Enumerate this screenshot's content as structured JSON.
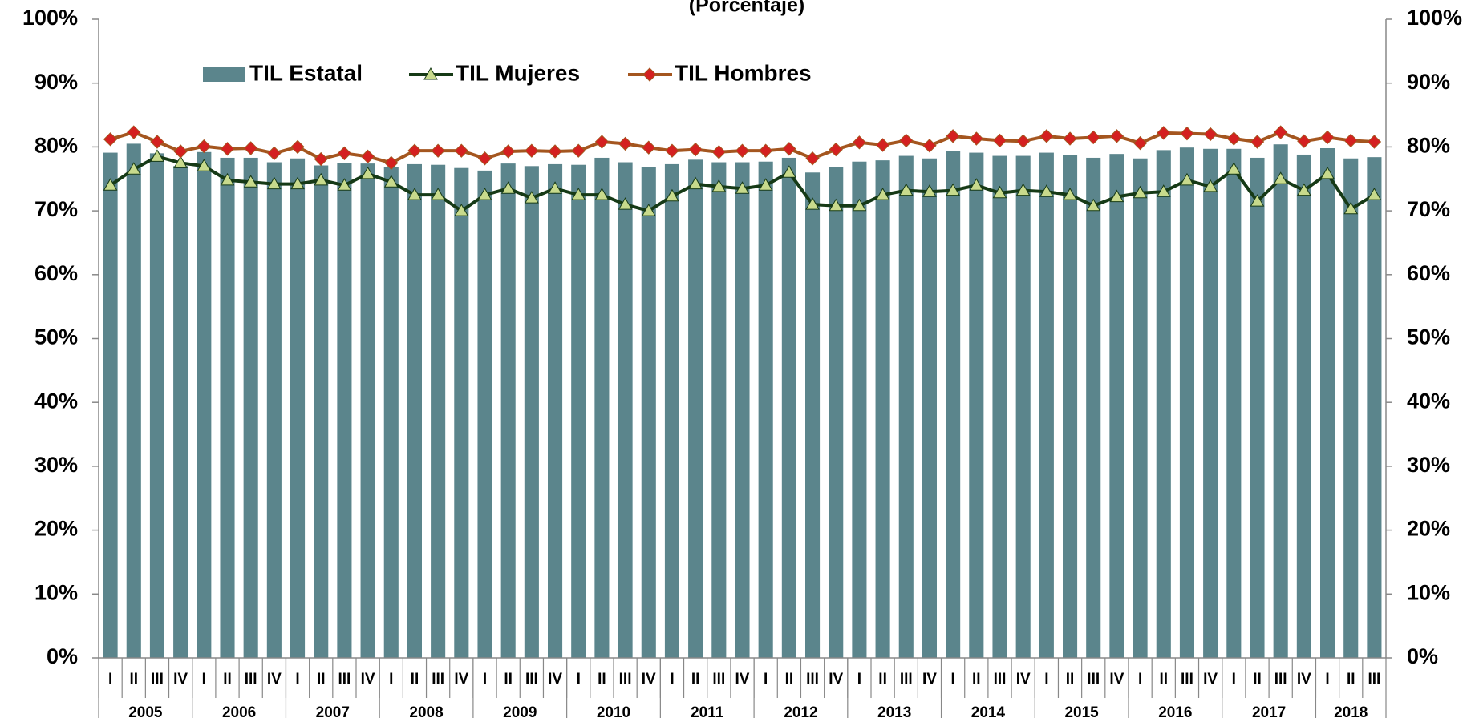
{
  "chart_data": {
    "type": "bar_line",
    "subtitle": "(Porcentaje)",
    "categories": [
      "I",
      "II",
      "III",
      "IV",
      "I",
      "II",
      "III",
      "IV",
      "I",
      "II",
      "III",
      "IV",
      "I",
      "II",
      "III",
      "IV",
      "I",
      "II",
      "III",
      "IV",
      "I",
      "II",
      "III",
      "IV",
      "I",
      "II",
      "III",
      "IV",
      "I",
      "II",
      "III",
      "IV",
      "I",
      "II",
      "III",
      "IV",
      "I",
      "II",
      "III",
      "IV",
      "I",
      "II",
      "III",
      "IV",
      "I",
      "II",
      "III",
      "IV",
      "I",
      "II",
      "III",
      "IV",
      "I",
      "II",
      "III"
    ],
    "groups": [
      "2005",
      "2006",
      "2007",
      "2008",
      "2009",
      "2010",
      "2011",
      "2012",
      "2013",
      "2014",
      "2015",
      "2016",
      "2017",
      "2018"
    ],
    "series": [
      {
        "name": "TIL Estatal",
        "kind": "bar",
        "color": "#5b858c",
        "values": [
          79.1,
          80.5,
          79.0,
          77.0,
          79.2,
          78.3,
          78.3,
          77.6,
          78.2,
          77.1,
          77.5,
          77.4,
          76.8,
          77.3,
          77.2,
          76.7,
          76.3,
          77.4,
          77.0,
          77.3,
          77.2,
          78.3,
          77.6,
          76.9,
          77.3,
          78.0,
          77.6,
          77.6,
          77.7,
          78.3,
          76.0,
          76.9,
          77.7,
          77.9,
          78.6,
          78.2,
          79.3,
          79.1,
          78.6,
          78.6,
          79.1,
          78.7,
          78.3,
          78.9,
          78.2,
          79.5,
          79.9,
          79.7,
          79.7,
          78.3,
          80.4,
          78.8,
          79.8,
          78.2,
          78.4
        ]
      },
      {
        "name": "TIL Mujeres",
        "kind": "line",
        "marker": "triangle",
        "color": "#163a16",
        "marker_color": "#c8da8c",
        "values": [
          74.0,
          76.5,
          78.5,
          77.5,
          77.0,
          74.8,
          74.5,
          74.2,
          74.2,
          74.8,
          74.0,
          75.8,
          74.5,
          72.5,
          72.5,
          70.0,
          72.5,
          73.5,
          72.0,
          73.5,
          72.5,
          72.5,
          71.0,
          70.0,
          72.3,
          74.2,
          73.8,
          73.5,
          74.0,
          76.0,
          71.0,
          70.8,
          70.8,
          72.5,
          73.2,
          73.0,
          73.2,
          74.0,
          72.8,
          73.2,
          73.0,
          72.5,
          70.8,
          72.2,
          72.8,
          73.0,
          74.8,
          73.8,
          76.5,
          71.5,
          75.0,
          73.2,
          75.8,
          70.3,
          72.5
        ]
      },
      {
        "name": "TIL Hombres",
        "kind": "line",
        "marker": "diamond",
        "color": "#a4561f",
        "marker_color": "#d42020",
        "values": [
          81.2,
          82.3,
          80.8,
          79.3,
          80.1,
          79.7,
          79.8,
          79.0,
          80.0,
          78.1,
          79.0,
          78.5,
          77.5,
          79.4,
          79.4,
          79.4,
          78.2,
          79.3,
          79.4,
          79.3,
          79.4,
          80.8,
          80.5,
          79.9,
          79.4,
          79.6,
          79.2,
          79.4,
          79.4,
          79.7,
          78.2,
          79.6,
          80.7,
          80.3,
          81.0,
          80.2,
          81.7,
          81.3,
          81.0,
          80.9,
          81.7,
          81.3,
          81.5,
          81.7,
          80.6,
          82.2,
          82.1,
          82.0,
          81.3,
          80.8,
          82.3,
          80.9,
          81.5,
          81.0,
          80.8
        ]
      }
    ],
    "ylim": [
      0,
      100
    ],
    "yticks": [
      {
        "value": 0,
        "label": "0%"
      },
      {
        "value": 10,
        "label": "10%"
      },
      {
        "value": 20,
        "label": "20%"
      },
      {
        "value": 30,
        "label": "30%"
      },
      {
        "value": 40,
        "label": "40%"
      },
      {
        "value": 50,
        "label": "50%"
      },
      {
        "value": 60,
        "label": "60%"
      },
      {
        "value": 70,
        "label": "70%"
      },
      {
        "value": 80,
        "label": "80%"
      },
      {
        "value": 90,
        "label": "90%"
      },
      {
        "value": 100,
        "label": "100%"
      }
    ],
    "y2lim": [
      0,
      100
    ],
    "y2ticks": [
      {
        "value": 0,
        "label": "0%"
      },
      {
        "value": 10,
        "label": "10%"
      },
      {
        "value": 20,
        "label": "20%"
      },
      {
        "value": 30,
        "label": "30%"
      },
      {
        "value": 40,
        "label": "40%"
      },
      {
        "value": 50,
        "label": "50%"
      },
      {
        "value": 60,
        "label": "60%"
      },
      {
        "value": 70,
        "label": "70%"
      },
      {
        "value": 80,
        "label": "80%"
      },
      {
        "value": 90,
        "label": "90%"
      },
      {
        "value": 100,
        "label": "100%"
      }
    ],
    "grid": false
  }
}
